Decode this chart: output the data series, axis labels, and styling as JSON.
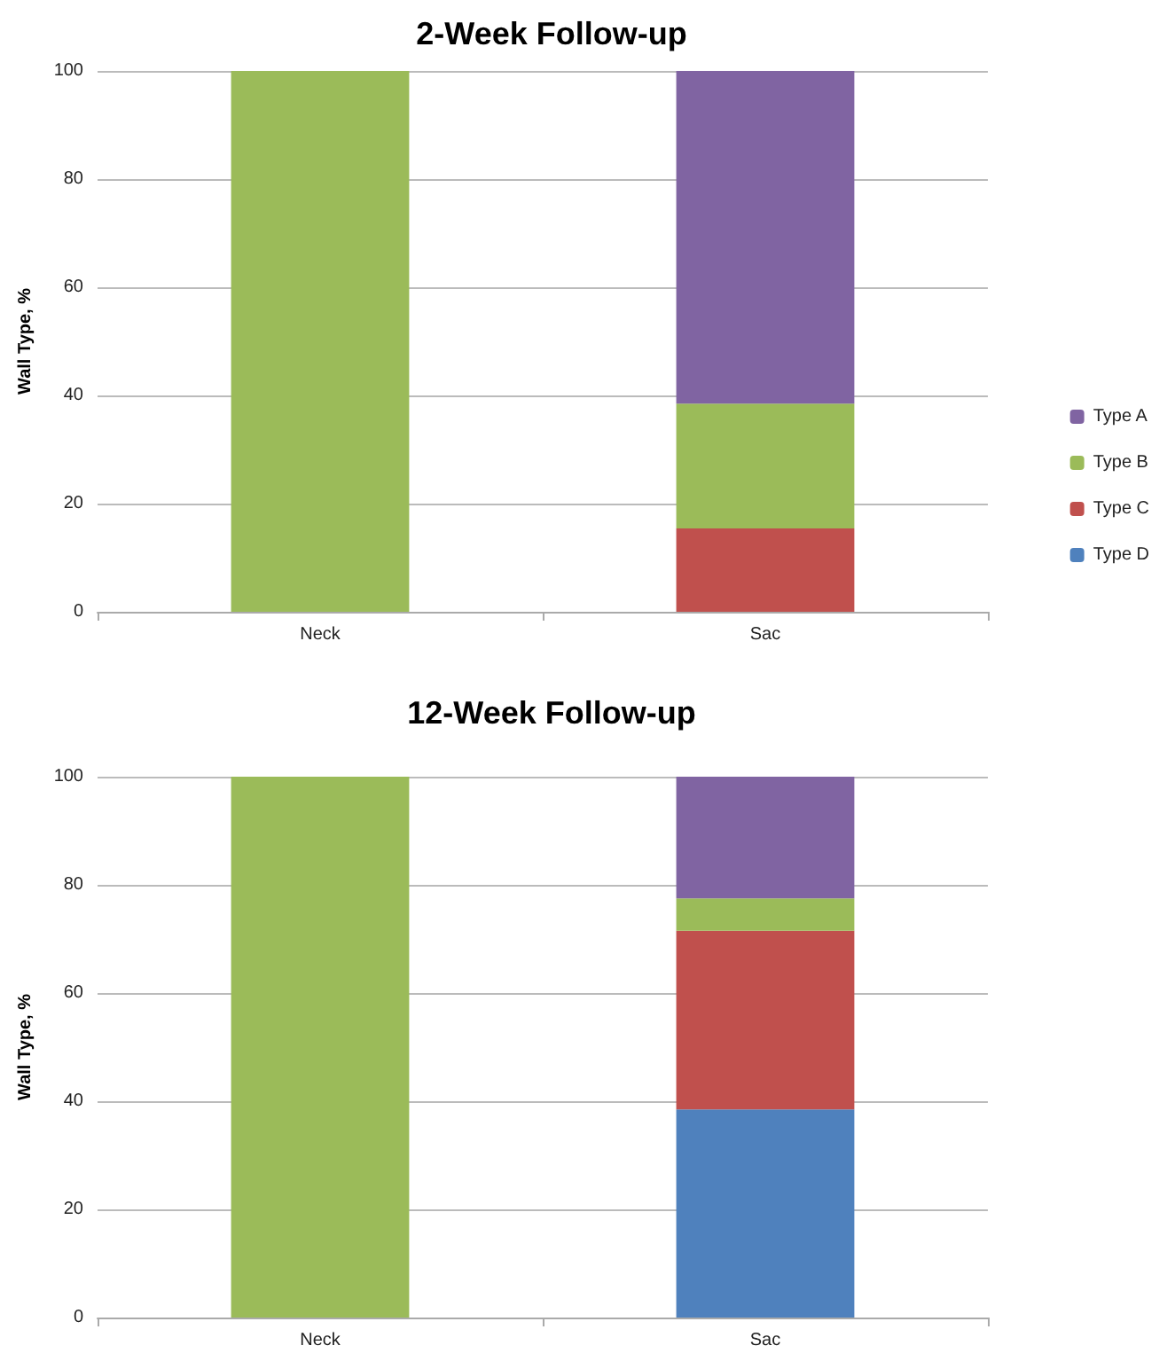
{
  "chart_data": [
    {
      "type": "bar",
      "title": "2-Week Follow-up",
      "ylabel": "Wall Type, %",
      "categories": [
        "Neck",
        "Sac"
      ],
      "stacked": true,
      "ylim": [
        0,
        100
      ],
      "yticks": [
        0,
        20,
        40,
        60,
        80,
        100
      ],
      "grid": "y",
      "legend": "right",
      "series": [
        {
          "name": "Type D",
          "color": "#4f81bd",
          "values": [
            null,
            null
          ]
        },
        {
          "name": "Type C",
          "color": "#c0504d",
          "values": [
            null,
            15.4
          ]
        },
        {
          "name": "Type B",
          "color": "#9bbb59",
          "values": [
            100,
            23.1
          ]
        },
        {
          "name": "Type A",
          "color": "#8064a2",
          "values": [
            null,
            61.5
          ]
        }
      ]
    },
    {
      "type": "bar",
      "title": "12-Week Follow-up",
      "ylabel": "Wall Type, %",
      "categories": [
        "Neck",
        "Sac"
      ],
      "stacked": true,
      "ylim": [
        0,
        100
      ],
      "yticks": [
        0,
        20,
        40,
        60,
        80,
        100
      ],
      "grid": "y",
      "series": [
        {
          "color": "#4f81bd",
          "values": [
            null,
            38.5
          ]
        },
        {
          "color": "#c0504d",
          "values": [
            null,
            33
          ]
        },
        {
          "color": "#9bbb59",
          "values": [
            100,
            6
          ]
        },
        {
          "color": "#8064a2",
          "values": [
            null,
            22.5
          ]
        }
      ]
    }
  ]
}
